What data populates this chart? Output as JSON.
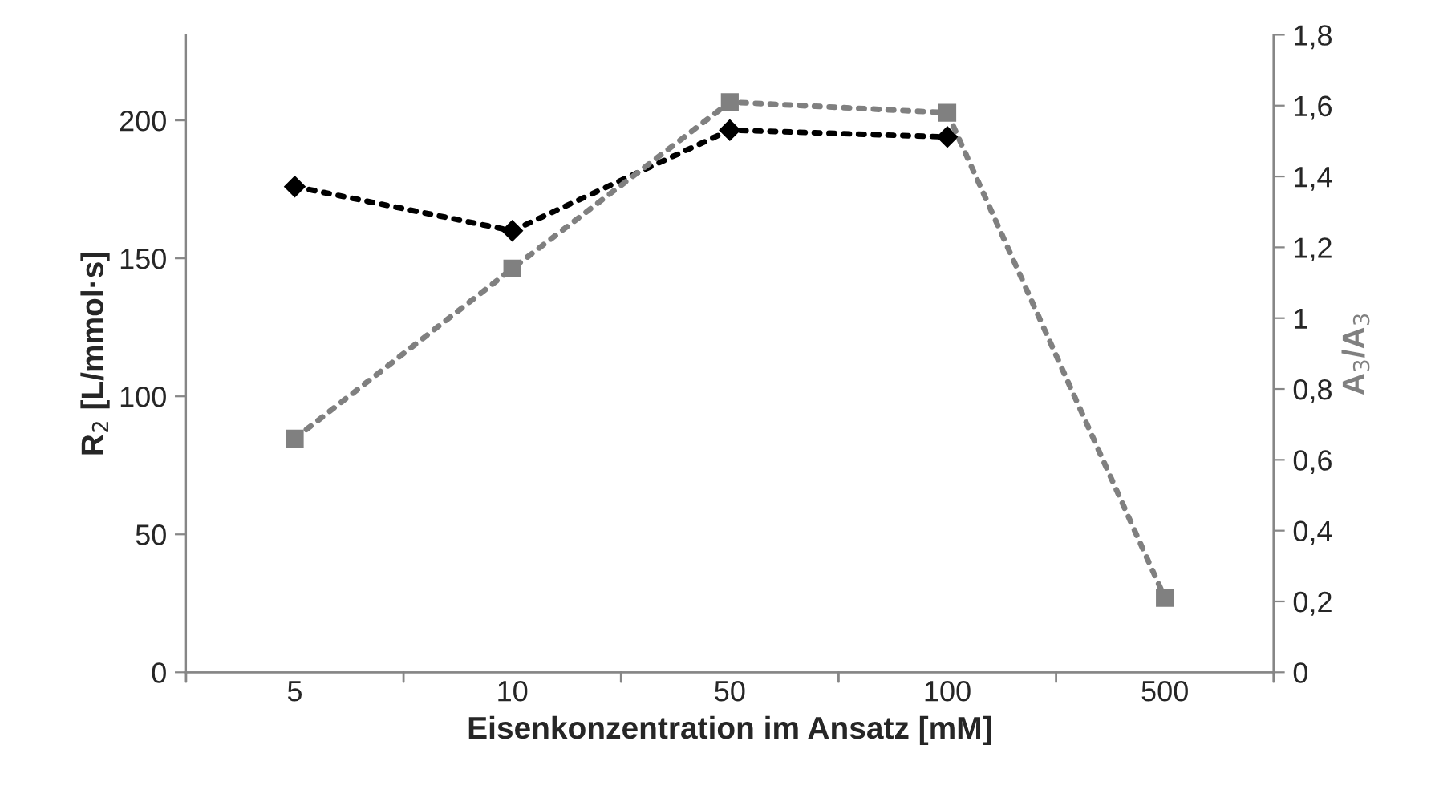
{
  "chart_data": {
    "type": "line",
    "xlabel": "Eisenkonzentration im Ansatz [mM]",
    "ylabel": "R$_{2}$ [L/mmol·s]",
    "y2label": "A$_{3}$/A$_{3}$",
    "categories": [
      "5",
      "10",
      "50",
      "100",
      "500"
    ],
    "series": [
      {
        "color": "#000000",
        "marker": "diamond",
        "line_style": "dotted",
        "values": [
          176,
          160,
          196.5,
          194,
          null
        ]
      },
      {
        "color": "#808080",
        "marker": "square",
        "line_style": "dotted",
        "axis": "y2",
        "values": [
          0.66,
          1.14,
          1.61,
          1.58,
          0.21
        ]
      }
    ],
    "ylim": [
      0,
      231
    ],
    "yticks": [
      0,
      50,
      100,
      150,
      200
    ],
    "y2lim": [
      0,
      1.8
    ],
    "y2ticks": [
      0,
      {
        "value": 0.2,
        "label": "0,2"
      },
      {
        "value": 0.4,
        "label": "0,4"
      },
      {
        "value": 0.6,
        "label": "0,6"
      },
      {
        "value": 0.8,
        "label": "0,8"
      },
      1,
      {
        "value": 1.2,
        "label": "1,2"
      },
      {
        "value": 1.4,
        "label": "1,4"
      },
      {
        "value": 1.6,
        "label": "1,6"
      },
      {
        "value": 1.8,
        "label": "1,8"
      }
    ],
    "grid": false,
    "legend": false
  }
}
